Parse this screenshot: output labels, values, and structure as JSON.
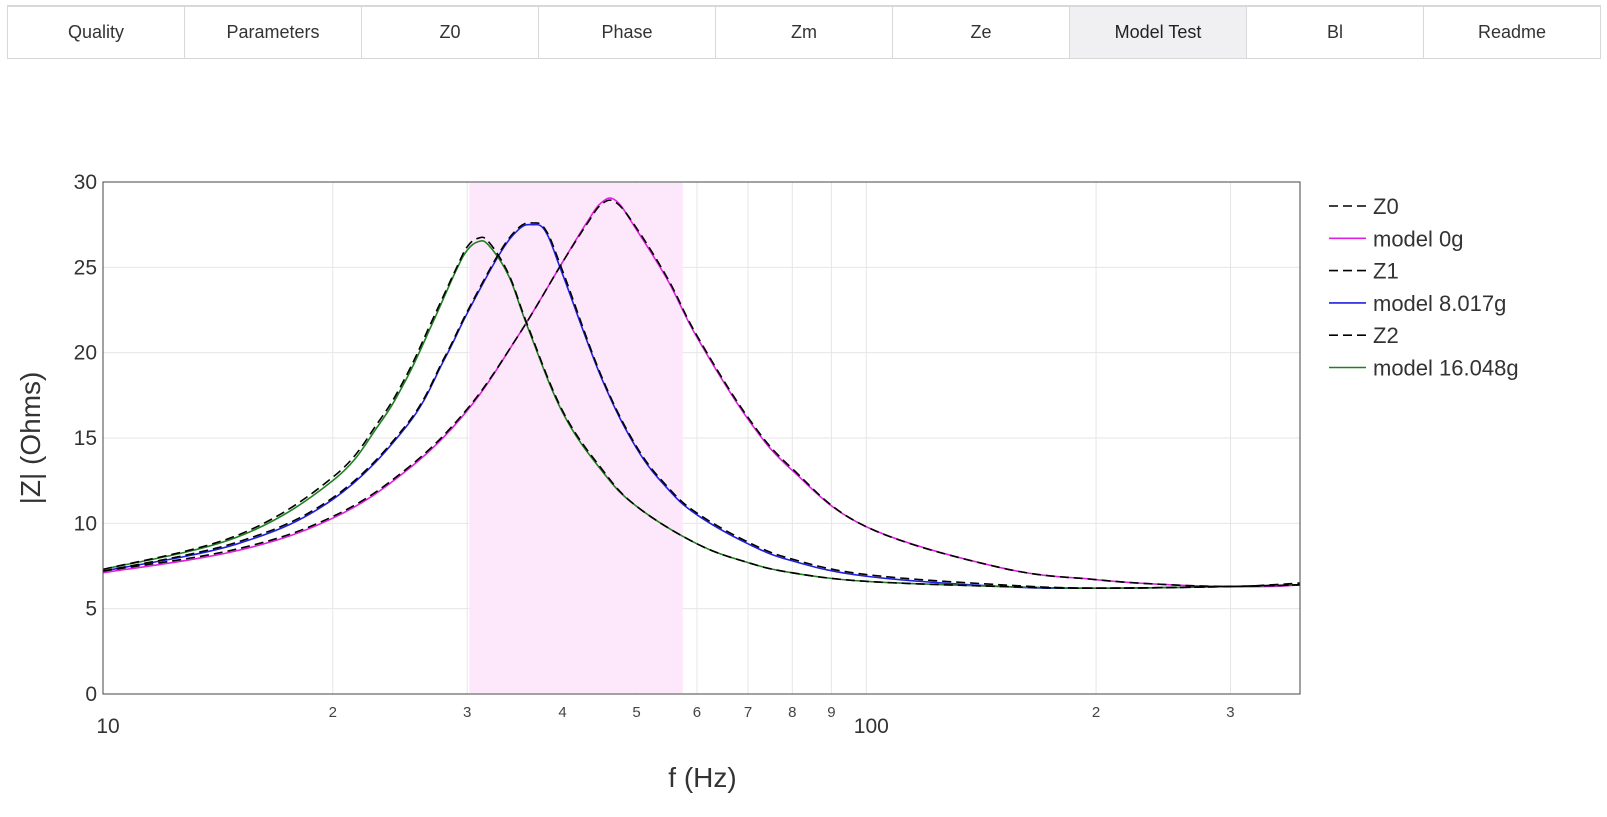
{
  "tabs": [
    {
      "id": "quality",
      "label": "Quality"
    },
    {
      "id": "parameters",
      "label": "Parameters"
    },
    {
      "id": "z0",
      "label": "Z0"
    },
    {
      "id": "phase",
      "label": "Phase"
    },
    {
      "id": "zm",
      "label": "Zm"
    },
    {
      "id": "ze",
      "label": "Ze"
    },
    {
      "id": "model-test",
      "label": "Model Test",
      "active": true
    },
    {
      "id": "bl",
      "label": "Bl"
    },
    {
      "id": "readme",
      "label": "Readme"
    }
  ],
  "chart_data": {
    "type": "line",
    "xlabel": "f (Hz)",
    "ylabel": "|Z| (Ohms)",
    "x_scale": "log",
    "xlim": [
      10,
      370
    ],
    "ylim": [
      0,
      30
    ],
    "y_ticks": [
      0,
      5,
      10,
      15,
      20,
      25,
      30
    ],
    "x_major_ticks": [
      {
        "value": 10,
        "label": "10"
      },
      {
        "value": 100,
        "label": "100"
      }
    ],
    "x_minor_ticks": [
      {
        "value": 20,
        "label": "2"
      },
      {
        "value": 30,
        "label": "3"
      },
      {
        "value": 40,
        "label": "4"
      },
      {
        "value": 50,
        "label": "5"
      },
      {
        "value": 60,
        "label": "6"
      },
      {
        "value": 70,
        "label": "7"
      },
      {
        "value": 80,
        "label": "8"
      },
      {
        "value": 90,
        "label": "9"
      },
      {
        "value": 200,
        "label": "2"
      },
      {
        "value": 300,
        "label": "3"
      }
    ],
    "grid": true,
    "legend_position": "right",
    "highlight_band": {
      "x": [
        30.2,
        57.5
      ],
      "color": "#fde8fb"
    },
    "series": [
      {
        "name": "Z0",
        "style": "dash",
        "color": "#000000",
        "x": [
          10,
          15,
          20,
          25,
          30,
          35,
          40,
          43,
          45,
          47,
          50,
          55,
          60,
          70,
          80,
          100,
          150,
          200,
          250,
          300,
          340,
          370
        ],
        "y": [
          7.2,
          8.5,
          10.4,
          13.2,
          16.7,
          21.0,
          25.3,
          27.5,
          28.7,
          28.8,
          27.3,
          24.3,
          21.0,
          16.2,
          13.2,
          9.8,
          7.4,
          6.7,
          6.4,
          6.3,
          6.4,
          6.5
        ]
      },
      {
        "name": "model 0g",
        "style": "solid",
        "color": "#e020e0",
        "x": [
          10,
          15,
          20,
          25,
          30,
          35,
          40,
          43,
          45,
          47,
          50,
          55,
          60,
          70,
          80,
          100,
          150,
          200,
          250,
          300,
          340,
          370
        ],
        "y": [
          7.1,
          8.4,
          10.3,
          13.1,
          16.6,
          21.0,
          25.3,
          27.6,
          28.8,
          28.9,
          27.2,
          24.2,
          20.9,
          16.1,
          13.1,
          9.8,
          7.4,
          6.7,
          6.4,
          6.3,
          6.3,
          6.4
        ]
      },
      {
        "name": "Z1",
        "style": "dash",
        "color": "#000000",
        "x": [
          10,
          15,
          20,
          25,
          28,
          30,
          33,
          35,
          36.5,
          38,
          40,
          45,
          50,
          55,
          60,
          70,
          80,
          100,
          150,
          200,
          300,
          370
        ],
        "y": [
          7.2,
          8.9,
          11.5,
          15.8,
          19.7,
          22.4,
          25.8,
          27.3,
          27.6,
          27.2,
          24.8,
          18.6,
          14.5,
          12.1,
          10.6,
          8.9,
          7.9,
          7.0,
          6.4,
          6.2,
          6.3,
          6.4
        ]
      },
      {
        "name": "model 8.017g",
        "style": "solid",
        "color": "#2020e0",
        "x": [
          10,
          15,
          20,
          25,
          28,
          30,
          33,
          35,
          36.5,
          38,
          40,
          45,
          50,
          55,
          60,
          70,
          80,
          100,
          150,
          200,
          300,
          370
        ],
        "y": [
          7.2,
          8.8,
          11.4,
          15.7,
          19.6,
          22.3,
          25.7,
          27.2,
          27.5,
          27.1,
          24.6,
          18.5,
          14.4,
          12.0,
          10.5,
          8.8,
          7.8,
          6.9,
          6.3,
          6.2,
          6.3,
          6.4
        ]
      },
      {
        "name": "Z2",
        "style": "dash",
        "color": "#000000",
        "x": [
          10,
          15,
          20,
          23,
          25,
          27,
          29,
          30,
          31,
          32,
          34,
          36,
          40,
          45,
          50,
          60,
          70,
          80,
          100,
          150,
          200,
          300,
          370
        ],
        "y": [
          7.3,
          9.3,
          12.7,
          16.0,
          18.7,
          21.9,
          24.9,
          26.2,
          26.7,
          26.5,
          24.6,
          21.6,
          16.6,
          13.2,
          11.0,
          8.8,
          7.7,
          7.1,
          6.6,
          6.3,
          6.2,
          6.3,
          6.4
        ]
      },
      {
        "name": "model 16.048g",
        "style": "solid",
        "color": "#208020",
        "x": [
          10,
          15,
          20,
          23,
          25,
          27,
          29,
          30,
          31,
          32,
          34,
          36,
          40,
          45,
          50,
          60,
          70,
          80,
          100,
          150,
          200,
          300,
          370
        ],
        "y": [
          7.3,
          9.2,
          12.5,
          15.8,
          18.5,
          21.7,
          24.8,
          26.0,
          26.5,
          26.3,
          24.5,
          21.5,
          16.5,
          13.1,
          11.0,
          8.8,
          7.7,
          7.1,
          6.6,
          6.3,
          6.2,
          6.3,
          6.4
        ]
      }
    ]
  }
}
